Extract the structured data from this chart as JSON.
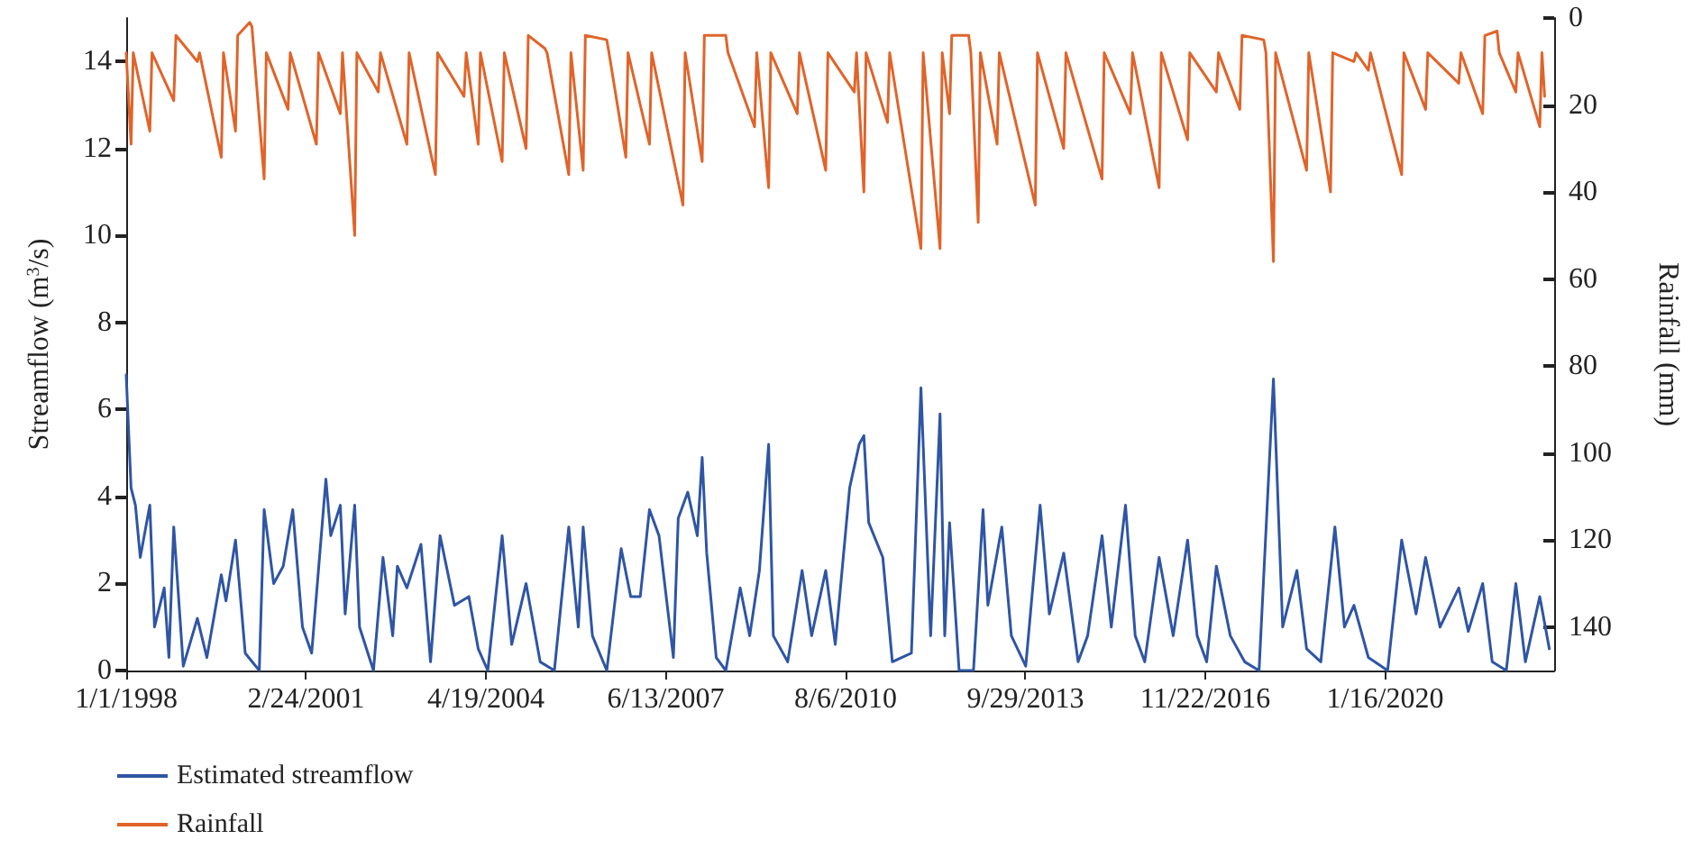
{
  "chart_data": {
    "type": "line",
    "ylabel": "Streamflow (m$^{3}$/s)",
    "y2label": "Rainfall (mm)",
    "xlim": [
      "1998-01-01",
      "2023-01-01"
    ],
    "xticks": [
      {
        "value": "1998-01-01",
        "label": "1/1/1998"
      },
      {
        "value": "2001-02-24",
        "label": "2/24/2001"
      },
      {
        "value": "2004-04-19",
        "label": "4/19/2004"
      },
      {
        "value": "2007-06-13",
        "label": "6/13/2007"
      },
      {
        "value": "2010-08-06",
        "label": "8/6/2010"
      },
      {
        "value": "2013-09-29",
        "label": "9/29/2013"
      },
      {
        "value": "2016-11-22",
        "label": "11/22/2016"
      },
      {
        "value": "2020-01-16",
        "label": "1/16/2020"
      }
    ],
    "ylim": [
      0,
      15
    ],
    "yticks": [
      0,
      2,
      4,
      6,
      8,
      10,
      12,
      14
    ],
    "y2lim": [
      150,
      0
    ],
    "y2ticks": [
      0,
      20,
      40,
      60,
      80,
      100,
      120,
      140
    ],
    "grid": false,
    "legend": "bottom left",
    "marker": "none",
    "line_style": "solid",
    "series": [
      {
        "name": "Estimated streamflow",
        "color": "#2f55a4",
        "axis": "y",
        "x": [
          "1998-01-01",
          "1998-02",
          "1998-03",
          "1998-04",
          "1998-06",
          "1998-07",
          "1998-09",
          "1998-10",
          "1998-11",
          "1999-01",
          "1999-04",
          "1999-06",
          "1999-09",
          "1999-10",
          "1999-12",
          "2000-02",
          "2000-05",
          "2000-06",
          "2000-08",
          "2000-10",
          "2000-12",
          "2001-02",
          "2001-04",
          "2001-07",
          "2001-08",
          "2001-10",
          "2001-11",
          "2002-01",
          "2002-02",
          "2002-05",
          "2002-07",
          "2002-09",
          "2002-10",
          "2002-12",
          "2003-03",
          "2003-05",
          "2003-07",
          "2003-10",
          "2004-01",
          "2004-03",
          "2004-05",
          "2004-08",
          "2004-10",
          "2005-01",
          "2005-04",
          "2005-07",
          "2005-10",
          "2005-12",
          "2006-01",
          "2006-03",
          "2006-06",
          "2006-09",
          "2006-11",
          "2007-01",
          "2007-03",
          "2007-05",
          "2007-08",
          "2007-09",
          "2007-11",
          "2008-01",
          "2008-02",
          "2008-03",
          "2008-05",
          "2008-07",
          "2008-10",
          "2008-12",
          "2009-02",
          "2009-04",
          "2009-05",
          "2009-08",
          "2009-11",
          "2010-01",
          "2010-04",
          "2010-06",
          "2010-09",
          "2010-11",
          "2010-12",
          "2011-01",
          "2011-04",
          "2011-06",
          "2011-10",
          "2011-12",
          "2012-02",
          "2012-04",
          "2012-05",
          "2012-06",
          "2012-08",
          "2012-11",
          "2013-01",
          "2013-02",
          "2013-05",
          "2013-07",
          "2013-10",
          "2014-01",
          "2014-03",
          "2014-06",
          "2014-09",
          "2014-11",
          "2015-02",
          "2015-04",
          "2015-07",
          "2015-09",
          "2015-11",
          "2016-02",
          "2016-05",
          "2016-08",
          "2016-10",
          "2016-12",
          "2017-02",
          "2017-05",
          "2017-08",
          "2017-11",
          "2018-02",
          "2018-04",
          "2018-07",
          "2018-09",
          "2018-12",
          "2019-03",
          "2019-05",
          "2019-07",
          "2019-10",
          "2020-02",
          "2020-05",
          "2020-08",
          "2020-10",
          "2021-01",
          "2021-05",
          "2021-07",
          "2021-10",
          "2021-12",
          "2022-03",
          "2022-05",
          "2022-07",
          "2022-10",
          "2022-12"
        ],
        "values": [
          6.8,
          4.2,
          3.8,
          2.6,
          3.8,
          1.0,
          1.9,
          0.3,
          3.3,
          0.1,
          1.2,
          0.3,
          2.2,
          1.6,
          3.0,
          0.4,
          0,
          3.7,
          2.0,
          2.4,
          3.7,
          1.0,
          0.4,
          4.4,
          3.1,
          3.8,
          1.3,
          3.8,
          1.0,
          0,
          2.6,
          0.8,
          2.4,
          1.9,
          2.9,
          0.2,
          3.1,
          1.5,
          1.7,
          0.5,
          0,
          3.1,
          0.6,
          2.0,
          0.2,
          0,
          3.3,
          1.0,
          3.3,
          0.8,
          0,
          2.8,
          1.7,
          1.7,
          3.7,
          3.1,
          0.3,
          3.5,
          4.1,
          3.1,
          4.9,
          2.7,
          0.3,
          0,
          1.9,
          0.8,
          2.3,
          5.2,
          0.8,
          0.2,
          2.3,
          0.8,
          2.3,
          0.6,
          4.2,
          5.2,
          5.4,
          3.4,
          2.6,
          0.2,
          0.4,
          6.5,
          0.8,
          5.9,
          0.8,
          3.4,
          0,
          0,
          3.7,
          1.5,
          3.3,
          0.8,
          0.1,
          3.8,
          1.3,
          2.7,
          0.2,
          0.8,
          3.1,
          1.0,
          3.8,
          0.8,
          0.2,
          2.6,
          0.8,
          3.0,
          0.8,
          0.2,
          2.4,
          0.8,
          0.2,
          0,
          6.7,
          1.0,
          2.3,
          0.5,
          0.2,
          3.3,
          1.0,
          1.5,
          0.3,
          0,
          3.0,
          1.3,
          2.6,
          1.0,
          1.9,
          0.9,
          2.0,
          0.2,
          0,
          2.0,
          0.2,
          1.7,
          0.5
        ]
      },
      {
        "name": "Rainfall",
        "color": "#e0642a",
        "axis": "y2",
        "x": [
          "1998-01-01",
          "1998-02",
          "1998-02-15",
          "1998-06",
          "1998-06-15",
          "1998-11",
          "1998-11-15",
          "1999-04",
          "1999-04-15",
          "1999-09",
          "1999-09-15",
          "1999-12",
          "1999-12-15",
          "2000-03",
          "2000-03-15",
          "2000-06",
          "2000-06-15",
          "2000-11",
          "2000-11-15",
          "2001-05",
          "2001-05-15",
          "2001-10",
          "2001-10-15",
          "2002-01",
          "2002-01-15",
          "2002-06",
          "2002-06-15",
          "2002-12",
          "2002-12-15",
          "2003-06",
          "2003-06-15",
          "2003-12",
          "2003-12-15",
          "2004-03",
          "2004-03-15",
          "2004-08",
          "2004-08-15",
          "2005-01",
          "2005-01-15",
          "2005-05",
          "2005-05-15",
          "2005-10",
          "2005-10-15",
          "2006-01",
          "2006-01-15",
          "2006-06",
          "2006-06-15",
          "2006-10",
          "2006-10-15",
          "2007-03",
          "2007-03-15",
          "2007-10",
          "2007-10-15",
          "2008-02",
          "2008-02-15",
          "2008-07",
          "2008-07-15",
          "2009-01",
          "2009-01-15",
          "2009-04",
          "2009-04-15",
          "2009-10",
          "2009-10-15",
          "2010-04",
          "2010-04-15",
          "2010-10",
          "2010-10-15",
          "2010-12",
          "2010-12-15",
          "2011-05",
          "2011-05-15",
          "2011-12",
          "2011-12-15",
          "2012-04",
          "2012-04-15",
          "2012-06",
          "2012-06-15",
          "2012-10",
          "2012-10-15",
          "2012-12",
          "2012-12-15",
          "2013-04",
          "2013-04-15",
          "2013-12",
          "2013-12-15",
          "2014-06",
          "2014-06-15",
          "2015-02",
          "2015-02-15",
          "2015-08",
          "2015-08-15",
          "2016-02",
          "2016-02-15",
          "2016-08",
          "2016-08-15",
          "2017-02",
          "2017-02-15",
          "2017-07",
          "2017-07-15",
          "2017-12",
          "2017-12-15",
          "2018-02",
          "2018-02-15",
          "2018-09",
          "2018-09-15",
          "2019-02",
          "2019-02-15",
          "2019-07",
          "2019-07-15",
          "2019-10",
          "2019-10-15",
          "2020-05",
          "2020-05-15",
          "2020-10",
          "2020-10-15",
          "2021-05",
          "2021-05-15",
          "2021-10",
          "2021-10-15",
          "2022-01",
          "2022-01-15",
          "2022-05",
          "2022-05-15",
          "2022-10",
          "2022-10-15",
          "2022-11"
        ],
        "values": [
          8,
          29,
          8,
          26,
          8,
          19,
          4,
          10,
          8,
          32,
          8,
          26,
          4,
          1,
          2,
          37,
          8,
          21,
          8,
          29,
          8,
          22,
          8,
          50,
          8,
          17,
          8,
          29,
          8,
          36,
          8,
          18,
          8,
          29,
          8,
          33,
          8,
          30,
          4,
          7,
          8,
          36,
          8,
          35,
          4,
          5,
          8,
          32,
          8,
          29,
          8,
          43,
          8,
          33,
          4,
          4,
          8,
          25,
          8,
          39,
          8,
          22,
          8,
          35,
          8,
          17,
          8,
          40,
          8,
          24,
          8,
          53,
          8,
          53,
          8,
          22,
          4,
          4,
          8,
          47,
          8,
          29,
          8,
          43,
          8,
          30,
          8,
          37,
          8,
          22,
          8,
          39,
          8,
          28,
          8,
          17,
          8,
          21,
          4,
          5,
          8,
          56,
          8,
          35,
          8,
          40,
          8,
          10,
          8,
          12,
          8,
          36,
          8,
          21,
          8,
          15,
          8,
          22,
          4,
          3,
          8,
          17,
          8,
          25,
          8,
          18
        ]
      }
    ]
  }
}
